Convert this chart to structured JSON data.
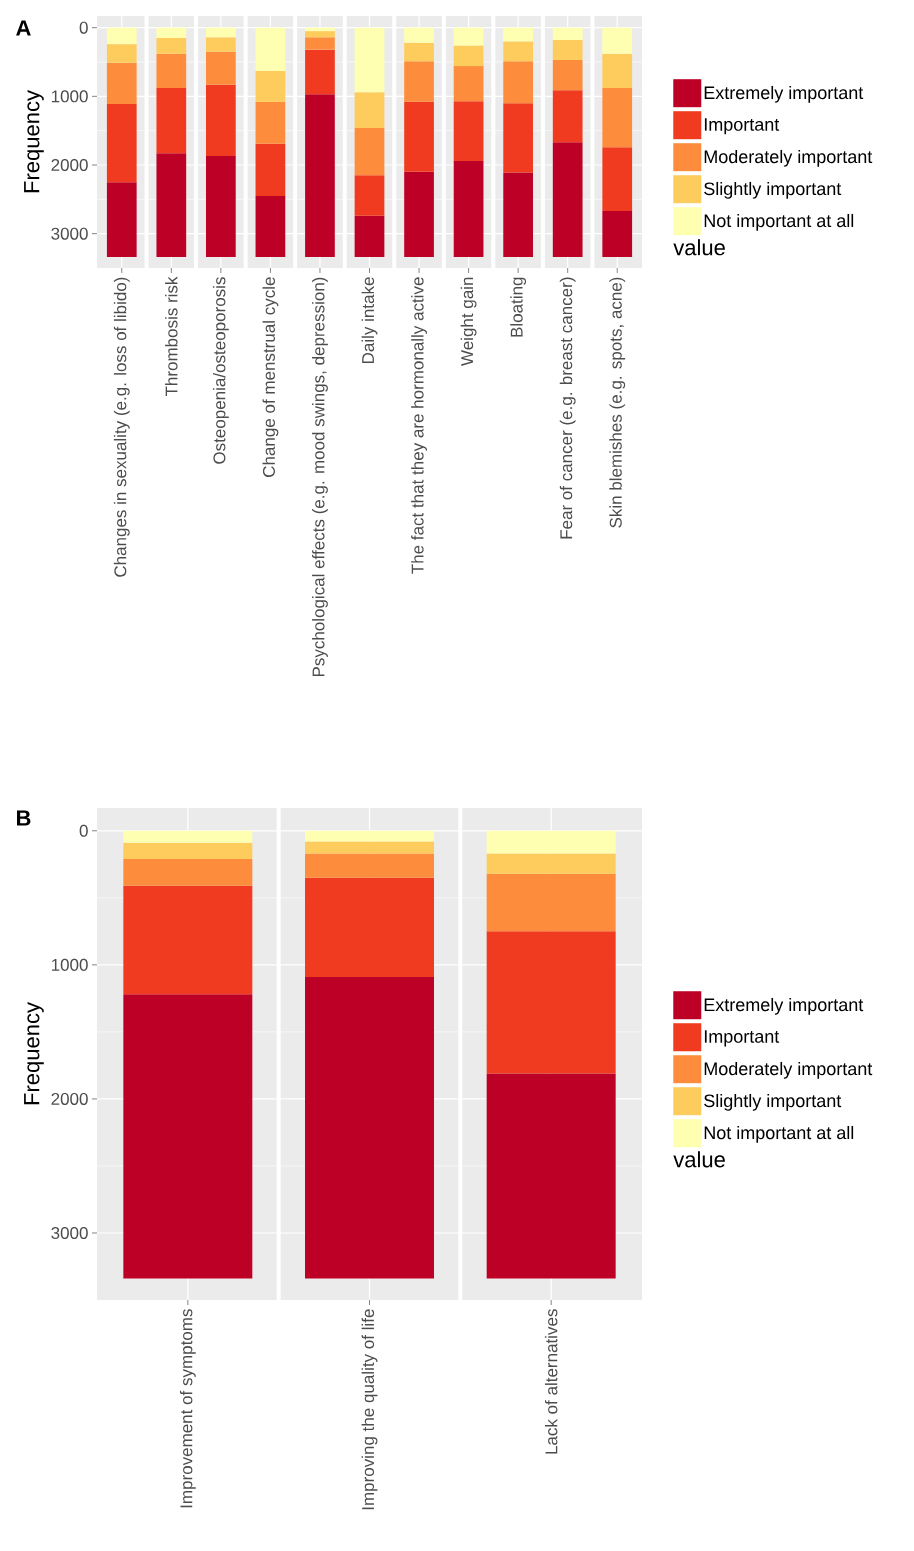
{
  "chart_data": [
    {
      "type": "bar",
      "title": "A",
      "ylabel": "Frequency",
      "legend_title": "value",
      "stacked": true,
      "legend": "right",
      "grid": true,
      "categories": [
        "Changes in sexuality (e.g. loss of libido)",
        "Thrombosis risk",
        "Osteopenia/osteoporosis",
        "Change of menstrual cycle",
        "Psychological effects (e.g. mood swings, depression)",
        "Daily intake",
        "The fact that they are hormonally active",
        "Weight gain",
        "Bloating",
        "Fear of cancer (e.g. breast cancer)",
        "Skin blemishes (e.g. spots, acne)"
      ],
      "ylim": [
        3500,
        -170
      ],
      "yticks": [
        0,
        1000,
        2000,
        3000
      ],
      "series": [
        {
          "name": "Not important at all",
          "color": "#ffffb2",
          "values": [
            240,
            150,
            140,
            630,
            50,
            940,
            220,
            260,
            200,
            180,
            380
          ]
        },
        {
          "name": "Slightly important",
          "color": "#fecc5c",
          "values": [
            270,
            230,
            210,
            450,
            90,
            520,
            270,
            300,
            290,
            290,
            500
          ]
        },
        {
          "name": "Moderately important",
          "color": "#fd8d3c",
          "values": [
            600,
            500,
            480,
            610,
            180,
            690,
            590,
            510,
            610,
            440,
            860
          ]
        },
        {
          "name": "Important",
          "color": "#f03b20",
          "values": [
            1140,
            950,
            1040,
            760,
            650,
            590,
            1020,
            870,
            1010,
            760,
            930
          ]
        },
        {
          "name": "Extremely important",
          "color": "#bd0026",
          "values": [
            1090,
            1510,
            1470,
            890,
            2370,
            600,
            1240,
            1400,
            1230,
            1670,
            670
          ]
        }
      ]
    },
    {
      "type": "bar",
      "title": "B",
      "ylabel": "Frequency",
      "legend_title": "value",
      "stacked": true,
      "legend": "right",
      "grid": true,
      "categories": [
        "Improvement of symptoms",
        "Improving the quality of life",
        "Lack of alternatives"
      ],
      "ylim": [
        3500,
        -170
      ],
      "yticks": [
        0,
        1000,
        2000,
        3000
      ],
      "series": [
        {
          "name": "Not important at all",
          "color": "#ffffb2",
          "values": [
            90,
            80,
            170
          ]
        },
        {
          "name": "Slightly important",
          "color": "#fecc5c",
          "values": [
            120,
            90,
            150
          ]
        },
        {
          "name": "Moderately important",
          "color": "#fd8d3c",
          "values": [
            200,
            180,
            430
          ]
        },
        {
          "name": "Important",
          "color": "#f03b20",
          "values": [
            810,
            740,
            1060
          ]
        },
        {
          "name": "Extremely important",
          "color": "#bd0026",
          "values": [
            2120,
            2250,
            1530
          ]
        }
      ]
    }
  ]
}
